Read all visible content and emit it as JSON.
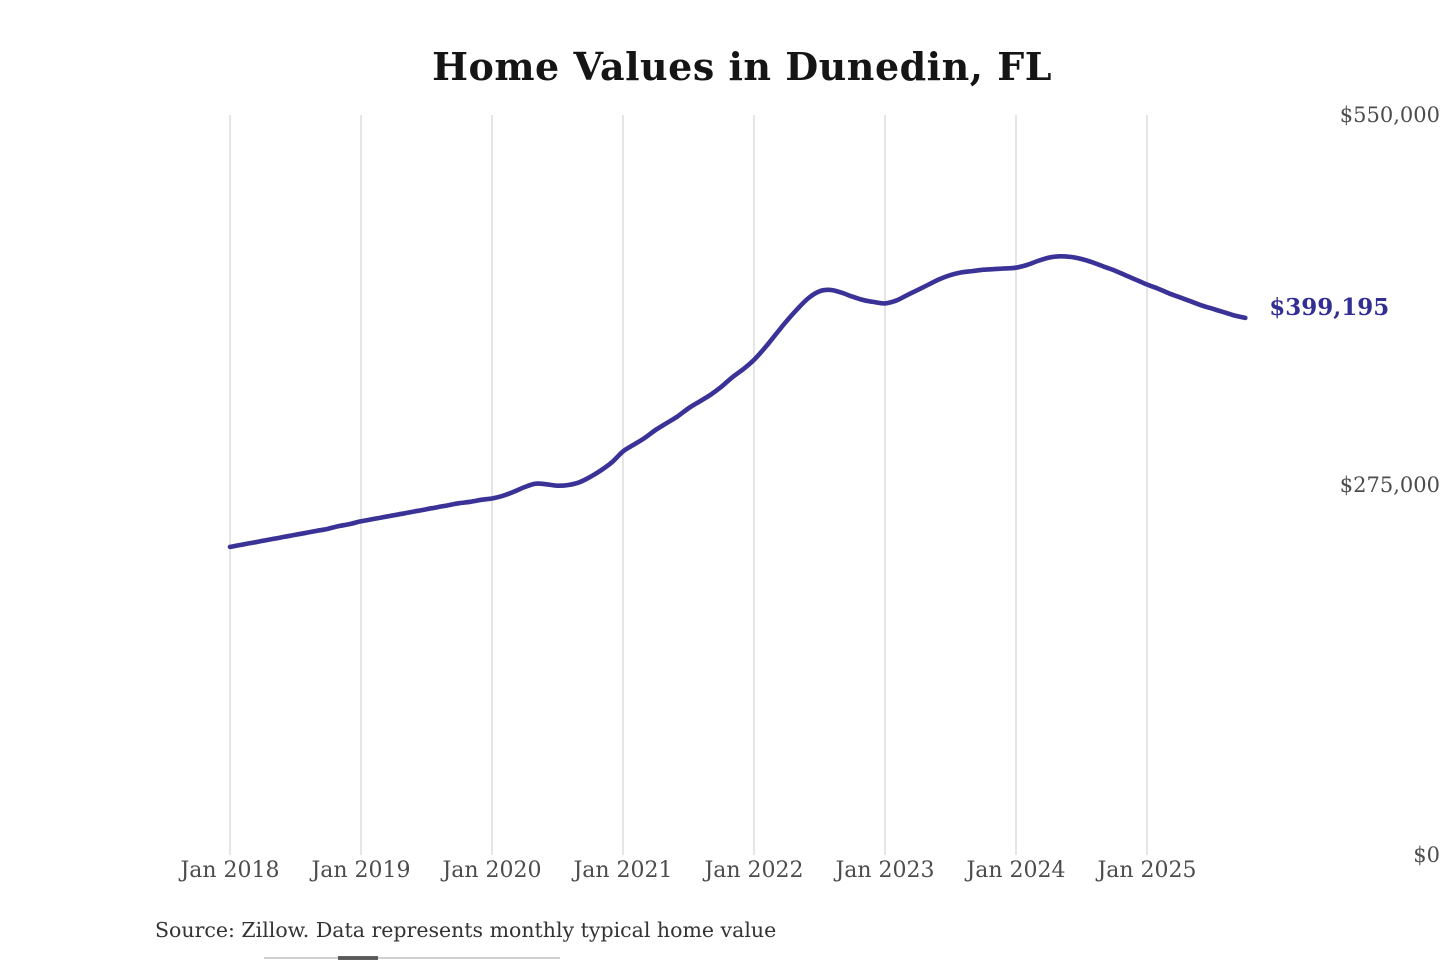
{
  "page": {
    "background": "#ffffff"
  },
  "chart_data": {
    "type": "line",
    "title": "Home Values in Dunedin, FL",
    "series_name": "Monthly typical home value",
    "x": [
      "Jan 2018",
      "Feb 2018",
      "Mar 2018",
      "Apr 2018",
      "May 2018",
      "Jun 2018",
      "Jul 2018",
      "Aug 2018",
      "Sep 2018",
      "Oct 2018",
      "Nov 2018",
      "Dec 2018",
      "Jan 2019",
      "Feb 2019",
      "Mar 2019",
      "Apr 2019",
      "May 2019",
      "Jun 2019",
      "Jul 2019",
      "Aug 2019",
      "Sep 2019",
      "Oct 2019",
      "Nov 2019",
      "Dec 2019",
      "Jan 2020",
      "Feb 2020",
      "Mar 2020",
      "Apr 2020",
      "May 2020",
      "Jun 2020",
      "Jul 2020",
      "Aug 2020",
      "Sep 2020",
      "Oct 2020",
      "Nov 2020",
      "Dec 2020",
      "Jan 2021",
      "Feb 2021",
      "Mar 2021",
      "Apr 2021",
      "May 2021",
      "Jun 2021",
      "Jul 2021",
      "Aug 2021",
      "Sep 2021",
      "Oct 2021",
      "Nov 2021",
      "Dec 2021",
      "Jan 2022",
      "Feb 2022",
      "Mar 2022",
      "Apr 2022",
      "May 2022",
      "Jun 2022",
      "Jul 2022",
      "Aug 2022",
      "Sep 2022",
      "Oct 2022",
      "Nov 2022",
      "Dec 2022",
      "Jan 2023",
      "Feb 2023",
      "Mar 2023",
      "Apr 2023",
      "May 2023",
      "Jun 2023",
      "Jul 2023",
      "Aug 2023",
      "Sep 2023",
      "Oct 2023",
      "Nov 2023",
      "Dec 2023",
      "Jan 2024",
      "Feb 2024",
      "Mar 2024",
      "Apr 2024",
      "May 2024",
      "Jun 2024",
      "Jul 2024",
      "Aug 2024",
      "Sep 2024",
      "Oct 2024",
      "Nov 2024",
      "Dec 2024",
      "Jan 2025",
      "Feb 2025",
      "Mar 2025",
      "Apr 2025",
      "May 2025",
      "Jun 2025",
      "Jul 2025",
      "Aug 2025",
      "Sep 2025",
      "Oct 2025"
    ],
    "values": [
      229000,
      230500,
      232000,
      233500,
      235000,
      236500,
      238000,
      239500,
      241000,
      242500,
      244500,
      246000,
      248000,
      249500,
      251000,
      252500,
      254000,
      255500,
      257000,
      258500,
      260000,
      261500,
      262500,
      264000,
      265000,
      267000,
      270000,
      273500,
      276000,
      275500,
      274500,
      275000,
      277000,
      281000,
      286000,
      292000,
      300000,
      305000,
      310000,
      316000,
      321000,
      326000,
      332000,
      337000,
      342000,
      348000,
      355000,
      361000,
      368000,
      377000,
      387000,
      397000,
      406000,
      414000,
      419000,
      420000,
      418000,
      415000,
      412500,
      411000,
      410000,
      412000,
      416000,
      420000,
      424000,
      428000,
      431000,
      433000,
      434000,
      435000,
      435500,
      436000,
      436500,
      438500,
      441500,
      444000,
      445000,
      444500,
      443000,
      440500,
      437500,
      434500,
      431000,
      427500,
      424000,
      421000,
      417500,
      414500,
      411500,
      408500,
      406000,
      403500,
      401000,
      399195
    ],
    "x_tick_labels": [
      "Jan 2018",
      "Jan 2019",
      "Jan 2020",
      "Jan 2021",
      "Jan 2022",
      "Jan 2023",
      "Jan 2024",
      "Jan 2025"
    ],
    "y_ticks": [
      {
        "label": "$0",
        "value": 0
      },
      {
        "label": "$275,000",
        "value": 275000
      },
      {
        "label": "$550,000",
        "value": 550000
      }
    ],
    "ylim": [
      0,
      550000
    ],
    "grid": "vertical",
    "legend": "none",
    "line_color": "#3a3297",
    "grid_color": "#cbcbcb",
    "annotation": {
      "label": "$399,195",
      "value": 399195,
      "color": "#332e93"
    },
    "source_note": "Source: Zillow. Data represents monthly typical home value"
  }
}
